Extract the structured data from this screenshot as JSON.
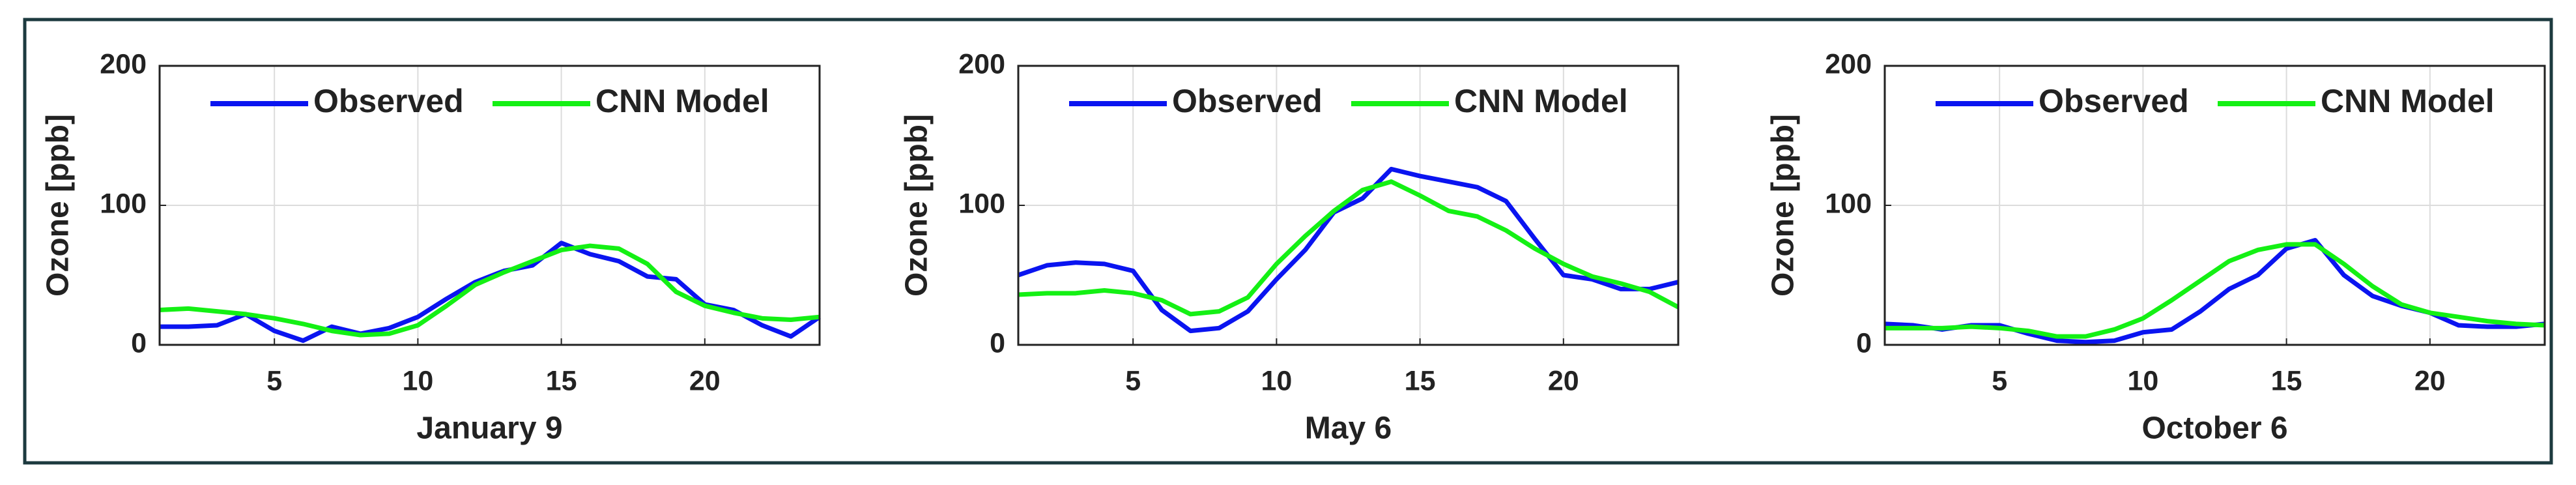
{
  "chart_data": [
    {
      "type": "line",
      "x_label": "January 9",
      "y_label": "Ozone [ppb]",
      "x": [
        1,
        2,
        3,
        4,
        5,
        6,
        7,
        8,
        9,
        10,
        11,
        12,
        13,
        14,
        15,
        16,
        17,
        18,
        19,
        20,
        21,
        22,
        23,
        24
      ],
      "series": [
        {
          "name": "Observed",
          "color": "#0a14f0",
          "values": [
            13,
            13,
            14,
            22,
            10,
            3,
            13,
            8,
            12,
            20,
            33,
            45,
            53,
            57,
            73,
            65,
            60,
            49,
            47,
            29,
            25,
            14,
            6,
            20
          ]
        },
        {
          "name": "CNN Model",
          "color": "#14f014",
          "values": [
            25,
            26,
            24,
            22,
            19,
            15,
            10,
            7,
            8,
            14,
            28,
            43,
            52,
            60,
            68,
            71,
            69,
            58,
            38,
            28,
            23,
            19,
            18,
            20
          ]
        }
      ],
      "xlim": [
        1,
        24
      ],
      "ylim": [
        0,
        200
      ],
      "xticks": [
        5,
        10,
        15,
        20
      ],
      "yticks": [
        0,
        100,
        200
      ],
      "grid": true,
      "legend": "top"
    },
    {
      "type": "line",
      "x_label": "May 6",
      "y_label": "Ozone [ppb]",
      "x": [
        1,
        2,
        3,
        4,
        5,
        6,
        7,
        8,
        9,
        10,
        11,
        12,
        13,
        14,
        15,
        16,
        17,
        18,
        19,
        20,
        21,
        22,
        23,
        24
      ],
      "series": [
        {
          "name": "Observed",
          "color": "#0a14f0",
          "values": [
            50,
            57,
            59,
            58,
            53,
            25,
            10,
            12,
            24,
            47,
            68,
            95,
            105,
            126,
            121,
            117,
            113,
            103,
            76,
            50,
            47,
            40,
            40,
            45
          ]
        },
        {
          "name": "CNN Model",
          "color": "#14f014",
          "values": [
            36,
            37,
            37,
            39,
            37,
            32,
            22,
            24,
            34,
            58,
            78,
            96,
            111,
            117,
            107,
            96,
            92,
            82,
            69,
            58,
            49,
            44,
            38,
            27
          ]
        }
      ],
      "xlim": [
        1,
        24
      ],
      "ylim": [
        0,
        200
      ],
      "xticks": [
        5,
        10,
        15,
        20
      ],
      "yticks": [
        0,
        100,
        200
      ],
      "grid": true,
      "legend": "top"
    },
    {
      "type": "line",
      "x_label": "October 6",
      "y_label": "Ozone [ppb]",
      "x": [
        1,
        2,
        3,
        4,
        5,
        6,
        7,
        8,
        9,
        10,
        11,
        12,
        13,
        14,
        15,
        16,
        17,
        18,
        19,
        20,
        21,
        22,
        23,
        24
      ],
      "series": [
        {
          "name": "Observed",
          "color": "#0a14f0",
          "values": [
            15,
            14,
            11,
            14,
            14,
            8,
            3,
            2,
            3,
            9,
            11,
            24,
            40,
            50,
            69,
            75,
            50,
            35,
            28,
            23,
            14,
            13,
            13,
            15
          ]
        },
        {
          "name": "CNN Model",
          "color": "#14f014",
          "values": [
            12,
            12,
            12,
            13,
            12,
            10,
            6,
            6,
            11,
            19,
            32,
            46,
            60,
            68,
            72,
            72,
            58,
            42,
            29,
            23,
            20,
            17,
            15,
            14
          ]
        }
      ],
      "xlim": [
        1,
        24
      ],
      "ylim": [
        0,
        200
      ],
      "xticks": [
        5,
        10,
        15,
        20
      ],
      "yticks": [
        0,
        100,
        200
      ],
      "grid": true,
      "legend": "top"
    }
  ]
}
